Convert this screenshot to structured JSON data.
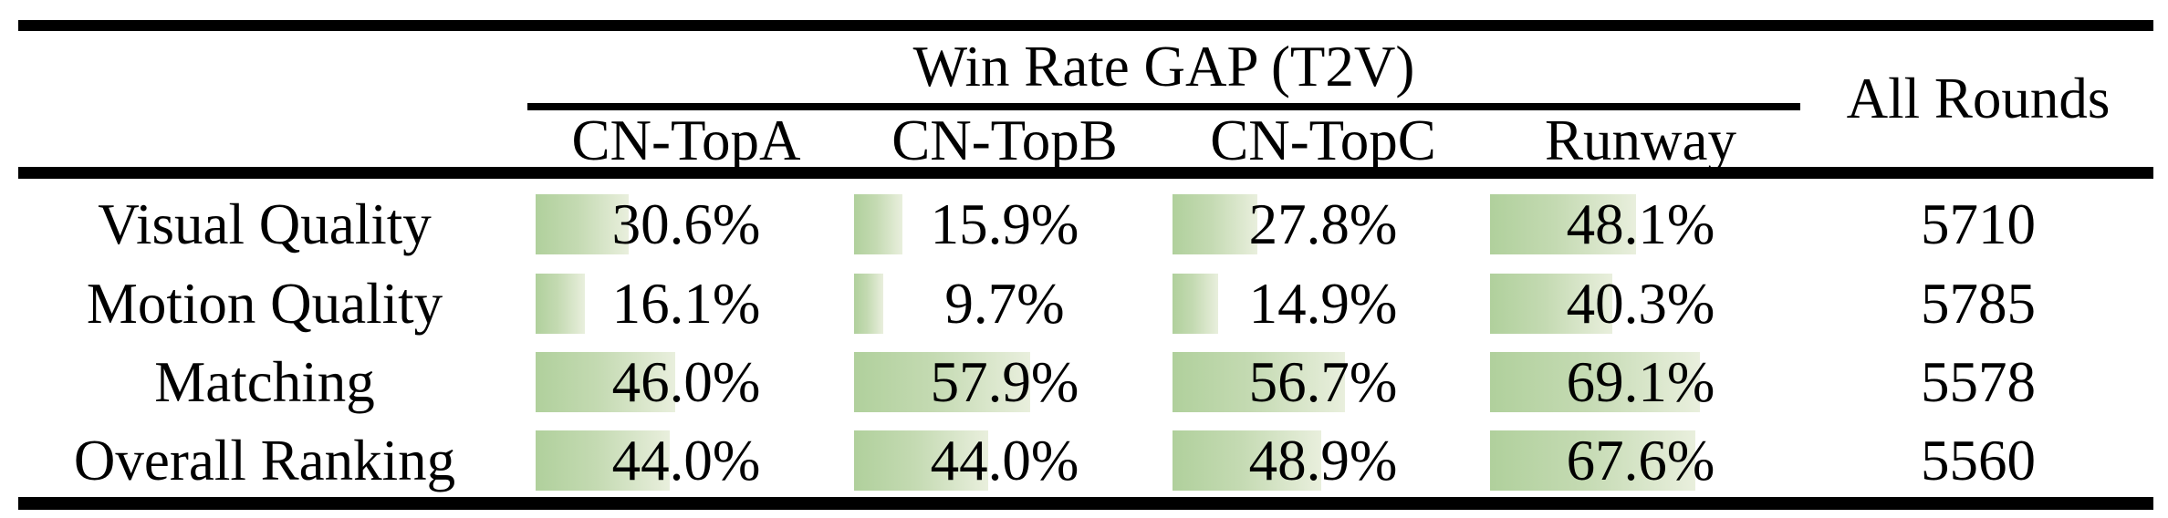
{
  "table": {
    "title": "Win Rate GAP (T2V)",
    "all_rounds_header": "All Rounds",
    "method_columns": [
      "CN-TopA",
      "CN-TopB",
      "CN-TopC",
      "Runway"
    ],
    "rows": [
      {
        "label": "Visual Quality",
        "cells": [
          {
            "text": "30.6%",
            "value": 30.6
          },
          {
            "text": "15.9%",
            "value": 15.9
          },
          {
            "text": "27.8%",
            "value": 27.8
          },
          {
            "text": "48.1%",
            "value": 48.1
          }
        ],
        "all_rounds": "5710"
      },
      {
        "label": "Motion Quality",
        "cells": [
          {
            "text": "16.1%",
            "value": 16.1
          },
          {
            "text": "9.7%",
            "value": 9.7
          },
          {
            "text": "14.9%",
            "value": 14.9
          },
          {
            "text": "40.3%",
            "value": 40.3
          }
        ],
        "all_rounds": "5785"
      },
      {
        "label": "Matching",
        "cells": [
          {
            "text": "46.0%",
            "value": 46.0
          },
          {
            "text": "57.9%",
            "value": 57.9
          },
          {
            "text": "56.7%",
            "value": 56.7
          },
          {
            "text": "69.1%",
            "value": 69.1
          }
        ],
        "all_rounds": "5578"
      },
      {
        "label": "Overall Ranking",
        "cells": [
          {
            "text": "44.0%",
            "value": 44.0
          },
          {
            "text": "44.0%",
            "value": 44.0
          },
          {
            "text": "48.9%",
            "value": 48.9
          },
          {
            "text": "67.6%",
            "value": 67.6
          }
        ],
        "all_rounds": "5560"
      }
    ]
  },
  "colors": {
    "bar_gradient_start": "#b0d09c",
    "bar_gradient_end": "#e9efdd",
    "rule_color": "#000000",
    "text_color": "#000000",
    "background": "#ffffff"
  },
  "chart_data": {
    "type": "bar",
    "title": "Win Rate GAP (T2V)",
    "categories": [
      "Visual Quality",
      "Motion Quality",
      "Matching",
      "Overall Ranking"
    ],
    "series": [
      {
        "name": "CN-TopA",
        "values": [
          30.6,
          16.1,
          46.0,
          44.0
        ]
      },
      {
        "name": "CN-TopB",
        "values": [
          15.9,
          9.7,
          57.9,
          44.0
        ]
      },
      {
        "name": "CN-TopC",
        "values": [
          27.8,
          14.9,
          56.7,
          48.9
        ]
      },
      {
        "name": "Runway",
        "values": [
          48.1,
          40.3,
          69.1,
          67.6
        ]
      }
    ],
    "all_rounds": [
      5710,
      5785,
      5578,
      5560
    ],
    "unit": "%",
    "xlabel": "",
    "ylabel": "Win Rate GAP",
    "ylim": [
      0,
      100
    ],
    "bar_orientation": "horizontal-inline",
    "grid": false,
    "legend_position": "column-headers"
  }
}
